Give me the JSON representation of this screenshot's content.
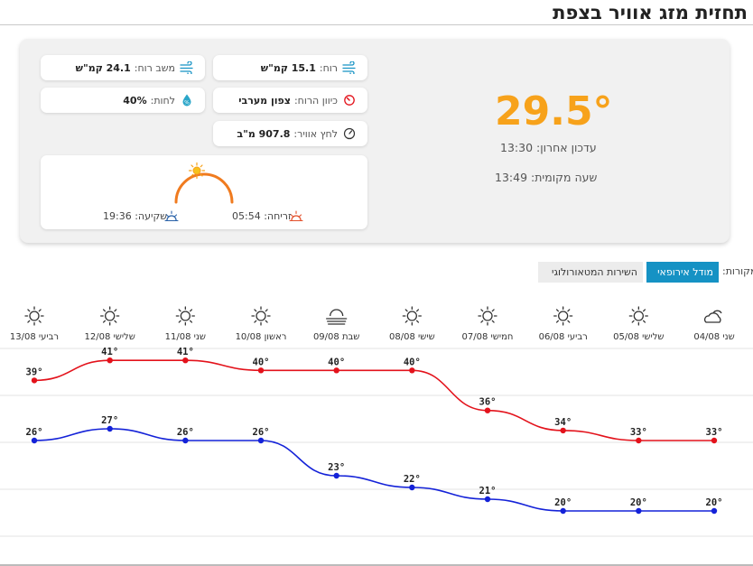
{
  "page": {
    "title": "תחזית מזג אוויר בצפת"
  },
  "current": {
    "temperature": "29.5°",
    "last_update": "עדכון אחרון: 13:30",
    "local_time": "שעה מקומית: 13:49"
  },
  "metrics": {
    "wind_label": "רוח:",
    "wind_value": "15.1 קמ\"ש",
    "gust_label": "משב רוח:",
    "gust_value": "24.1 קמ\"ש",
    "direction_label": "כיוון הרוח:",
    "direction_value": "צפון מערבי",
    "humidity_label": "לחות:",
    "humidity_value": "40%",
    "pressure_label": "לחץ אוויר:",
    "pressure_value": "907.8 מ\"ב"
  },
  "sun": {
    "sunrise": "זריחה: 05:54",
    "sunset": "שקיעה: 19:36"
  },
  "sources": {
    "label": "מקורות:",
    "options": [
      "מודל אירופאי",
      "השירות המטאורולוגי"
    ],
    "selected": "מודל אירופאי"
  },
  "colors": {
    "accent_temp": "#f7a21b",
    "high_series": "#e3121b",
    "low_series": "#1422d8",
    "source_active": "#1592c4",
    "sun_arc": "#f07b1f",
    "sun_icon": "#f7a21b"
  },
  "chart_data": {
    "type": "line",
    "categories": [
      "שני 04/08",
      "שלישי 05/08",
      "רביעי 06/08",
      "חמישי 07/08",
      "שישי 08/08",
      "שבת 09/08",
      "ראשון 10/08",
      "שני 11/08",
      "שלישי 12/08",
      "רביעי 13/08"
    ],
    "icons": [
      "partly-cloudy-icon",
      "sun-icon",
      "sun-icon",
      "sun-icon",
      "sun-icon",
      "haze-icon",
      "sun-icon",
      "sun-icon",
      "sun-icon",
      "sun-icon"
    ],
    "series": [
      {
        "values": [
          33,
          33,
          34,
          36,
          40,
          40,
          40,
          41,
          41,
          39
        ],
        "color": "#e3121b"
      },
      {
        "values": [
          20,
          20,
          20,
          21,
          22,
          23,
          26,
          26,
          27,
          26
        ],
        "color": "#1422d8"
      }
    ],
    "unit": "°",
    "grid": true
  }
}
